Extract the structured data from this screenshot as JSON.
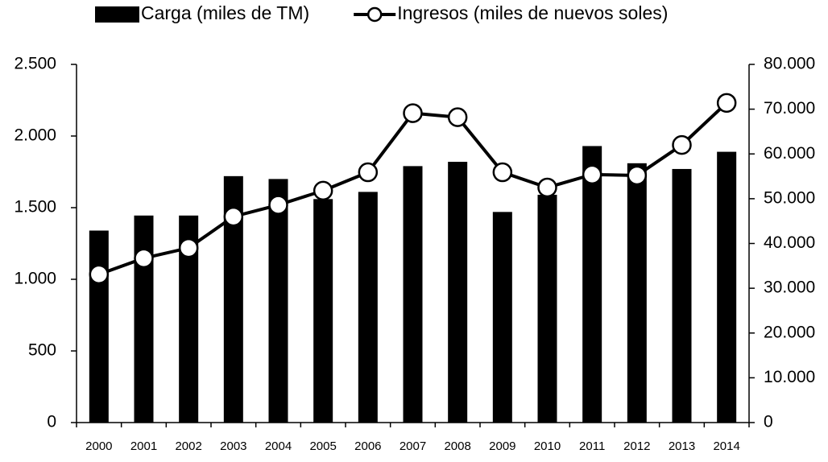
{
  "chart_data": {
    "type": "bar-line",
    "categories": [
      "2000",
      "2001",
      "2002",
      "2003",
      "2004",
      "2005",
      "2006",
      "2007",
      "2008",
      "2009",
      "2010",
      "2011",
      "2012",
      "2013",
      "2014"
    ],
    "series": [
      {
        "name": "Carga (miles de TM)",
        "type": "bar",
        "color": "#000000",
        "axis": "y",
        "values": [
          1340,
          1445,
          1445,
          1720,
          1700,
          1560,
          1610,
          1790,
          1820,
          1470,
          1590,
          1930,
          1810,
          1770,
          1890
        ]
      },
      {
        "name": "Ingresos (miles de nuevos soles)",
        "type": "line",
        "color": "#000000",
        "axis": "y2",
        "values": [
          33100,
          36700,
          39000,
          46000,
          48600,
          51800,
          55900,
          69100,
          68200,
          55900,
          52500,
          55400,
          55200,
          62000,
          71400
        ]
      }
    ],
    "ylim": [
      0,
      2500
    ],
    "yticks": [
      0,
      500,
      {
        "value": 1000,
        "label": "1.000"
      },
      {
        "value": 1500,
        "label": "1.500"
      },
      {
        "value": 2000,
        "label": "2.000"
      },
      {
        "value": 2500,
        "label": "2.500"
      }
    ],
    "y2lim": [
      0,
      80000
    ],
    "y2ticks": [
      0,
      {
        "value": 10000,
        "label": "10.000"
      },
      {
        "value": 20000,
        "label": "20.000"
      },
      {
        "value": 30000,
        "label": "30.000"
      },
      {
        "value": 40000,
        "label": "40.000"
      },
      {
        "value": 50000,
        "label": "50.000"
      },
      {
        "value": 60000,
        "label": "60.000"
      },
      {
        "value": 70000,
        "label": "70.000"
      },
      {
        "value": 80000,
        "label": "80.000"
      }
    ],
    "grid": false
  }
}
